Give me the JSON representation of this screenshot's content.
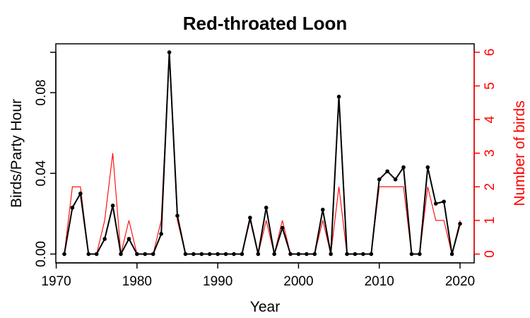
{
  "chart_data": {
    "type": "line",
    "title": "Red-throated Loon",
    "xlabel": "Year",
    "ylabel": "Birds/Party Hour",
    "y2label": "Number of birds",
    "xlim": [
      1970,
      2020
    ],
    "ylim": [
      0,
      0.1
    ],
    "y2lim": [
      0,
      6
    ],
    "x_ticks": [
      1970,
      1980,
      1990,
      2000,
      2010,
      2020
    ],
    "y_ticks": [
      "0.00",
      "0.04",
      "0.08"
    ],
    "y_tick_values": [
      0,
      0.04,
      0.08
    ],
    "y2_ticks": [
      0,
      1,
      2,
      3,
      4,
      5,
      6
    ],
    "grid": false,
    "x": [
      1971,
      1972,
      1973,
      1974,
      1975,
      1976,
      1977,
      1978,
      1979,
      1980,
      1981,
      1982,
      1983,
      1984,
      1985,
      1986,
      1987,
      1988,
      1989,
      1990,
      1991,
      1992,
      1993,
      1994,
      1995,
      1996,
      1997,
      1998,
      1999,
      2000,
      2001,
      2002,
      2003,
      2004,
      2005,
      2006,
      2007,
      2008,
      2009,
      2010,
      2011,
      2012,
      2013,
      2014,
      2015,
      2016,
      2017,
      2018,
      2019,
      2020
    ],
    "series": [
      {
        "axis": "left",
        "color": "#000000",
        "markers": true,
        "values": [
          0,
          0.023,
          0.03,
          0,
          0,
          0.0075,
          0.024,
          0,
          0.0075,
          0,
          0,
          0,
          0.01,
          0.1,
          0.019,
          0,
          0,
          0,
          0,
          0,
          0,
          0,
          0,
          0.018,
          0,
          0.023,
          0,
          0.013,
          0,
          0,
          0,
          0,
          0.022,
          0,
          0.078,
          0,
          0,
          0,
          0,
          0.037,
          0.041,
          0.037,
          0.043,
          0,
          0,
          0.043,
          0.025,
          0.026,
          0,
          0.015
        ]
      },
      {
        "axis": "right",
        "color": "#ff0000",
        "markers": false,
        "values": [
          0,
          2,
          2,
          0,
          0,
          1,
          3,
          0,
          1,
          0,
          0,
          0,
          1,
          6,
          1,
          0,
          0,
          0,
          0,
          0,
          0,
          0,
          0,
          1,
          0,
          1,
          0,
          1,
          0,
          0,
          0,
          0,
          1,
          0,
          2,
          0,
          0,
          0,
          0,
          2,
          2,
          2,
          2,
          0,
          0,
          2,
          1,
          1,
          0,
          1
        ]
      }
    ]
  },
  "colors": {
    "primary": "#000000",
    "secondary": "#ff0000"
  }
}
